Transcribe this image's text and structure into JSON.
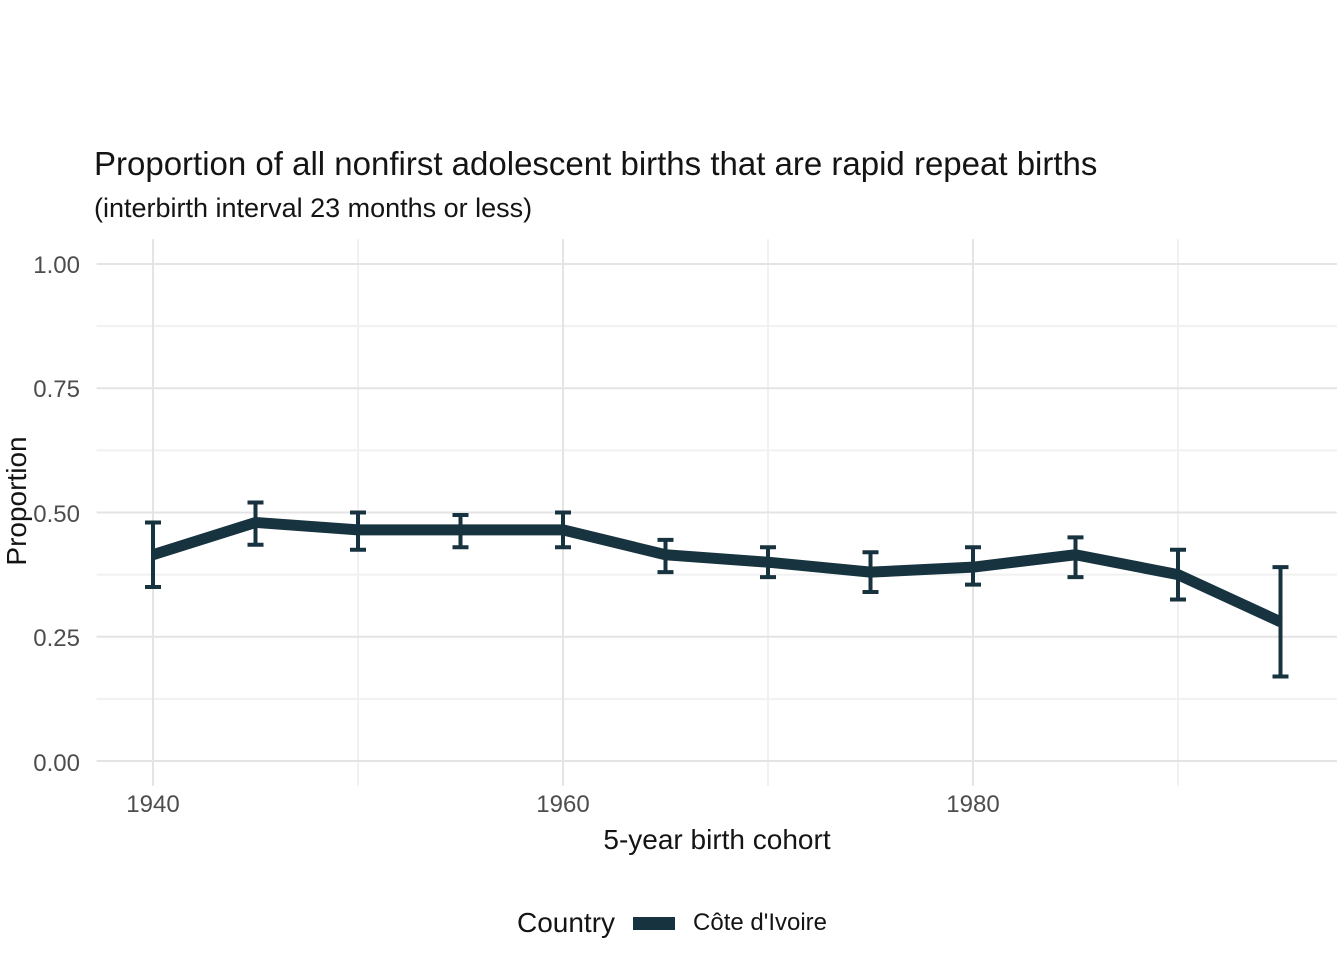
{
  "title": "Proportion of all nonfirst adolescent births that are rapid repeat births",
  "subtitle": "(interbirth interval 23 months or less)",
  "legend": {
    "title": "Country",
    "series_label": "Côte d'Ivoire"
  },
  "colors": {
    "series": "#17333f",
    "grid_major": "#e4e4e4",
    "grid_minor": "#f1f1f1",
    "tick_text": "#4d4d4d",
    "title_text": "#141414",
    "background": "#ffffff"
  },
  "chart_data": {
    "type": "line",
    "title": "Proportion of all nonfirst adolescent births that are rapid repeat births",
    "subtitle": "(interbirth interval 23 months or less)",
    "xlabel": "5-year birth cohort",
    "ylabel": "Proportion",
    "grid": true,
    "legend_position": "bottom",
    "x": [
      1940,
      1945,
      1950,
      1955,
      1960,
      1965,
      1970,
      1975,
      1980,
      1985,
      1990,
      1995
    ],
    "series": [
      {
        "name": "Côte d'Ivoire",
        "color": "#17333f",
        "values": [
          0.415,
          0.48,
          0.465,
          0.465,
          0.465,
          0.415,
          0.4,
          0.38,
          0.39,
          0.415,
          0.375,
          0.28
        ],
        "ci_lower": [
          0.35,
          0.435,
          0.425,
          0.43,
          0.43,
          0.38,
          0.37,
          0.34,
          0.355,
          0.37,
          0.325,
          0.17
        ],
        "ci_upper": [
          0.48,
          0.52,
          0.5,
          0.495,
          0.5,
          0.445,
          0.43,
          0.42,
          0.43,
          0.45,
          0.425,
          0.39
        ]
      }
    ],
    "xlim": [
      1937.25,
      1997.75
    ],
    "ylim": [
      -0.05,
      1.05
    ],
    "x_tick_values": [
      1940,
      1960,
      1980
    ],
    "x_tick_labels": [
      "1940",
      "1960",
      "1980"
    ],
    "x_minor": [
      1950,
      1970,
      1990
    ],
    "y_tick_values": [
      0.0,
      0.25,
      0.5,
      0.75,
      1.0
    ],
    "y_tick_labels": [
      "0.00",
      "0.25",
      "0.50",
      "0.75",
      "1.00"
    ],
    "y_minor": [
      0.125,
      0.375,
      0.625,
      0.875
    ]
  }
}
